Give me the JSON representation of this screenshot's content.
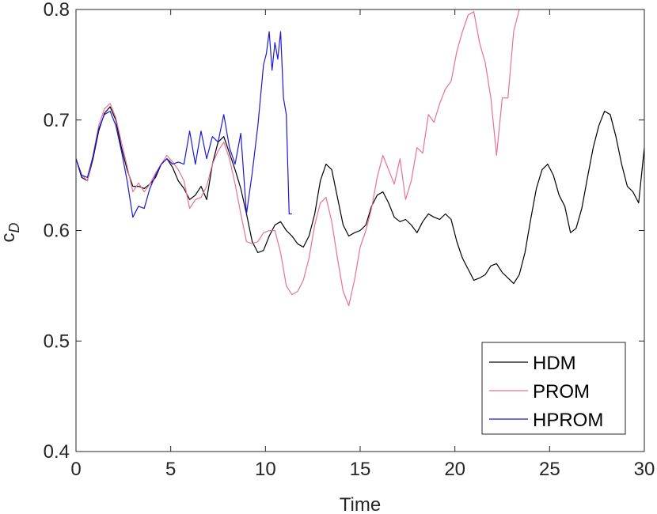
{
  "chart_data": {
    "type": "line",
    "xlabel": "Time",
    "ylabel": "c",
    "ylabel_sub": "D",
    "xlim": [
      0,
      30
    ],
    "ylim": [
      0.4,
      0.8
    ],
    "xticks": [
      0,
      5,
      10,
      15,
      20,
      25,
      30
    ],
    "yticks": [
      0.4,
      0.5,
      0.6,
      0.7,
      0.8
    ],
    "xtick_labels": [
      "0",
      "5",
      "10",
      "15",
      "20",
      "25",
      "30"
    ],
    "ytick_labels": [
      "0.4",
      "0.5",
      "0.6",
      "0.7",
      "0.8"
    ],
    "grid": false,
    "legend_position": "bottom-right",
    "series": [
      {
        "name": "HDM",
        "color": "#000000",
        "x": [
          0,
          0.3,
          0.6,
          0.9,
          1.2,
          1.5,
          1.8,
          2.1,
          2.4,
          2.7,
          3.0,
          3.3,
          3.6,
          3.9,
          4.2,
          4.5,
          4.8,
          5.1,
          5.4,
          5.7,
          6.0,
          6.3,
          6.6,
          6.9,
          7.2,
          7.5,
          7.8,
          8.1,
          8.4,
          8.7,
          9.0,
          9.3,
          9.6,
          9.9,
          10.2,
          10.5,
          10.8,
          11.1,
          11.4,
          11.7,
          12.0,
          12.3,
          12.6,
          12.9,
          13.2,
          13.5,
          13.8,
          14.1,
          14.4,
          14.7,
          15.0,
          15.3,
          15.6,
          15.9,
          16.2,
          16.5,
          16.8,
          17.1,
          17.4,
          17.7,
          18.0,
          18.3,
          18.6,
          18.9,
          19.2,
          19.5,
          19.8,
          20.1,
          20.4,
          20.7,
          21.0,
          21.3,
          21.6,
          21.9,
          22.2,
          22.5,
          22.8,
          23.1,
          23.4,
          23.7,
          24.0,
          24.3,
          24.6,
          24.9,
          25.2,
          25.5,
          25.8,
          26.1,
          26.4,
          26.7,
          27.0,
          27.3,
          27.6,
          27.9,
          28.2,
          28.5,
          28.8,
          29.1,
          29.4,
          29.7,
          30.0
        ],
        "y": [
          0.665,
          0.648,
          0.645,
          0.665,
          0.69,
          0.706,
          0.712,
          0.7,
          0.675,
          0.655,
          0.64,
          0.64,
          0.638,
          0.642,
          0.648,
          0.66,
          0.665,
          0.657,
          0.645,
          0.638,
          0.628,
          0.632,
          0.64,
          0.628,
          0.66,
          0.68,
          0.685,
          0.67,
          0.655,
          0.638,
          0.615,
          0.59,
          0.58,
          0.582,
          0.595,
          0.605,
          0.608,
          0.6,
          0.595,
          0.588,
          0.585,
          0.595,
          0.615,
          0.645,
          0.66,
          0.655,
          0.63,
          0.605,
          0.595,
          0.598,
          0.6,
          0.605,
          0.622,
          0.632,
          0.635,
          0.625,
          0.612,
          0.608,
          0.61,
          0.605,
          0.598,
          0.608,
          0.615,
          0.612,
          0.61,
          0.615,
          0.61,
          0.59,
          0.575,
          0.565,
          0.555,
          0.557,
          0.56,
          0.568,
          0.57,
          0.562,
          0.557,
          0.552,
          0.56,
          0.58,
          0.61,
          0.638,
          0.655,
          0.66,
          0.65,
          0.632,
          0.622,
          0.598,
          0.602,
          0.62,
          0.648,
          0.675,
          0.695,
          0.708,
          0.705,
          0.685,
          0.66,
          0.64,
          0.635,
          0.625,
          0.675
        ]
      },
      {
        "name": "PROM",
        "color": "#e8709a",
        "x": [
          0,
          0.3,
          0.6,
          0.9,
          1.2,
          1.5,
          1.8,
          2.1,
          2.4,
          2.7,
          3.0,
          3.3,
          3.6,
          3.9,
          4.2,
          4.5,
          4.8,
          5.1,
          5.4,
          5.7,
          6.0,
          6.3,
          6.6,
          6.9,
          7.2,
          7.5,
          7.8,
          8.1,
          8.4,
          8.7,
          9.0,
          9.3,
          9.6,
          9.9,
          10.2,
          10.5,
          10.8,
          11.1,
          11.4,
          11.7,
          12.0,
          12.3,
          12.6,
          12.9,
          13.2,
          13.5,
          13.8,
          14.1,
          14.4,
          14.7,
          15.0,
          15.3,
          15.6,
          15.9,
          16.2,
          16.5,
          16.8,
          17.1,
          17.4,
          17.7,
          18.0,
          18.3,
          18.6,
          18.9,
          19.2,
          19.5,
          19.8,
          20.1,
          20.4,
          20.7,
          21.0,
          21.3,
          21.6,
          21.9,
          22.2,
          22.5,
          22.8,
          23.1,
          23.4
        ],
        "y": [
          0.665,
          0.65,
          0.645,
          0.668,
          0.695,
          0.71,
          0.715,
          0.702,
          0.68,
          0.658,
          0.635,
          0.643,
          0.635,
          0.642,
          0.652,
          0.66,
          0.668,
          0.662,
          0.655,
          0.645,
          0.62,
          0.628,
          0.63,
          0.64,
          0.66,
          0.672,
          0.68,
          0.665,
          0.642,
          0.615,
          0.59,
          0.588,
          0.59,
          0.598,
          0.6,
          0.6,
          0.58,
          0.55,
          0.542,
          0.545,
          0.555,
          0.575,
          0.605,
          0.625,
          0.63,
          0.608,
          0.575,
          0.545,
          0.532,
          0.555,
          0.585,
          0.6,
          0.62,
          0.648,
          0.668,
          0.655,
          0.642,
          0.665,
          0.628,
          0.645,
          0.675,
          0.67,
          0.705,
          0.698,
          0.715,
          0.728,
          0.735,
          0.762,
          0.78,
          0.795,
          0.798,
          0.77,
          0.752,
          0.72,
          0.668,
          0.72,
          0.72,
          0.78,
          0.8
        ]
      },
      {
        "name": "HPROM",
        "color": "#1a1ad6",
        "x": [
          0,
          0.3,
          0.6,
          0.9,
          1.2,
          1.5,
          1.8,
          2.1,
          2.4,
          2.7,
          3.0,
          3.3,
          3.6,
          3.9,
          4.2,
          4.5,
          4.8,
          5.1,
          5.4,
          5.7,
          6.0,
          6.3,
          6.6,
          6.9,
          7.2,
          7.5,
          7.8,
          8.1,
          8.4,
          8.7,
          9.0,
          9.3,
          9.6,
          9.9,
          10.05,
          10.2,
          10.35,
          10.5,
          10.65,
          10.8,
          10.95,
          11.1,
          11.25,
          11.4
        ],
        "y": [
          0.665,
          0.65,
          0.648,
          0.667,
          0.692,
          0.705,
          0.708,
          0.695,
          0.672,
          0.645,
          0.612,
          0.622,
          0.62,
          0.638,
          0.65,
          0.66,
          0.665,
          0.66,
          0.662,
          0.66,
          0.69,
          0.66,
          0.69,
          0.665,
          0.685,
          0.68,
          0.705,
          0.675,
          0.66,
          0.688,
          0.615,
          0.652,
          0.695,
          0.75,
          0.76,
          0.78,
          0.745,
          0.77,
          0.755,
          0.78,
          0.72,
          0.705,
          0.615,
          0.615
        ]
      }
    ]
  }
}
